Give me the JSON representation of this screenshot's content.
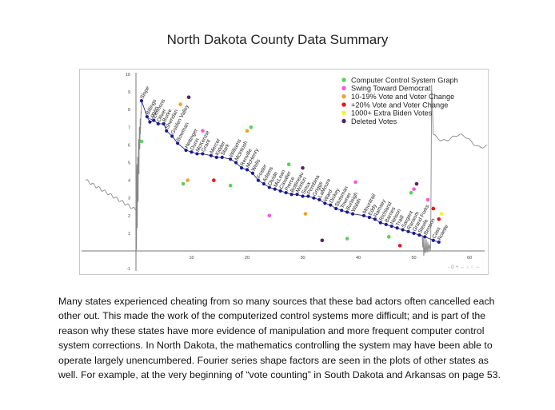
{
  "page": {
    "title": "North Dakota County Data Summary"
  },
  "chart_data": {
    "type": "scatter",
    "title": "",
    "xlabel": "",
    "ylabel": "",
    "xlim": [
      -9,
      64
    ],
    "ylim": [
      -1,
      10
    ],
    "x_ticks": [
      10,
      20,
      30,
      40,
      50,
      60
    ],
    "y_ticks": [
      -1,
      1,
      2,
      3,
      4,
      5,
      6,
      7,
      8,
      9,
      10
    ],
    "grid": false,
    "legend_position": "top-right",
    "legend": [
      {
        "label": "Computer Control System Graph",
        "color": "#5bd15b"
      },
      {
        "label": "Swing Toward Democrat",
        "color": "#ff55dd"
      },
      {
        "label": "10-19% Vote and Voter Change",
        "color": "#f0a030"
      },
      {
        "label": "+20% Vote and Voter Change",
        "color": "#e01818"
      },
      {
        "label": "1000+ Extra Biden Votes",
        "color": "#f5f520"
      },
      {
        "label": "Deleted Votes",
        "color": "#552266"
      }
    ],
    "counties": [
      {
        "name": "Slope",
        "x": 1,
        "y": 8.5
      },
      {
        "name": "Billings",
        "x": 2,
        "y": 7.6
      },
      {
        "name": "Logan",
        "x": 2.5,
        "y": 7.3
      },
      {
        "name": "Emmons",
        "x": 3.2,
        "y": 7.4
      },
      {
        "name": "Oliver",
        "x": 4,
        "y": 7.2
      },
      {
        "name": "Burke",
        "x": 5,
        "y": 7.2
      },
      {
        "name": "Sheridan",
        "x": 5.5,
        "y": 6.8
      },
      {
        "name": "Golden Valley",
        "x": 6.5,
        "y": 6.5
      },
      {
        "name": "Bowman",
        "x": 7.5,
        "y": 6.1
      },
      {
        "name": "Hettinger",
        "x": 9,
        "y": 5.7
      },
      {
        "name": "Dunn",
        "x": 10,
        "y": 5.6
      },
      {
        "name": "McKenzie",
        "x": 11,
        "y": 5.5
      },
      {
        "name": "Grant",
        "x": 12,
        "y": 5.5
      },
      {
        "name": "Mercer",
        "x": 13.5,
        "y": 5.4
      },
      {
        "name": "Kidder",
        "x": 14.5,
        "y": 5.3
      },
      {
        "name": "Stark",
        "x": 15.5,
        "y": 5.3
      },
      {
        "name": "Williams",
        "x": 17,
        "y": 5.2
      },
      {
        "name": "McIntosh",
        "x": 18,
        "y": 5.0
      },
      {
        "name": "Renville",
        "x": 19,
        "y": 4.7
      },
      {
        "name": "McHenry",
        "x": 20,
        "y": 4.6
      },
      {
        "name": "Wells",
        "x": 21,
        "y": 4.4
      },
      {
        "name": "Foster",
        "x": 22,
        "y": 4.0
      },
      {
        "name": "Adams",
        "x": 23,
        "y": 3.8
      },
      {
        "name": "Divide",
        "x": 24,
        "y": 3.6
      },
      {
        "name": "McLean",
        "x": 25,
        "y": 3.5
      },
      {
        "name": "Cavalier",
        "x": 26,
        "y": 3.4
      },
      {
        "name": "Pierce",
        "x": 27,
        "y": 3.3
      },
      {
        "name": "Bottineau",
        "x": 28,
        "y": 3.2
      },
      {
        "name": "Morton",
        "x": 29,
        "y": 3.2
      },
      {
        "name": "Sioux",
        "x": 30,
        "y": 3.1
      },
      {
        "name": "Pembina",
        "x": 31,
        "y": 3.1
      },
      {
        "name": "Griggs",
        "x": 32,
        "y": 3.0
      },
      {
        "name": "LaMoure",
        "x": 33,
        "y": 2.9
      },
      {
        "name": "Ward",
        "x": 34,
        "y": 2.7
      },
      {
        "name": "Dickey",
        "x": 35,
        "y": 2.6
      },
      {
        "name": "Stutsman",
        "x": 36,
        "y": 2.4
      },
      {
        "name": "Towner",
        "x": 37,
        "y": 2.3
      },
      {
        "name": "Burleigh",
        "x": 38,
        "y": 2.2
      },
      {
        "name": "Walsh",
        "x": 39,
        "y": 2.1
      },
      {
        "name": "Mountrail",
        "x": 41,
        "y": 2.0
      },
      {
        "name": "Eddy",
        "x": 42,
        "y": 1.9
      },
      {
        "name": "Ramsey",
        "x": 43,
        "y": 1.8
      },
      {
        "name": "Richland",
        "x": 44,
        "y": 1.6
      },
      {
        "name": "Barnes",
        "x": 45,
        "y": 1.5
      },
      {
        "name": "Nelson",
        "x": 46,
        "y": 1.4
      },
      {
        "name": "Traill",
        "x": 47,
        "y": 1.3
      },
      {
        "name": "Sargent",
        "x": 48,
        "y": 1.2
      },
      {
        "name": "Ransom",
        "x": 49,
        "y": 1.1
      },
      {
        "name": "Grand Forks",
        "x": 50,
        "y": 1.0
      },
      {
        "name": "Steele",
        "x": 51,
        "y": 0.9
      },
      {
        "name": "Benson",
        "x": 52,
        "y": 0.8
      },
      {
        "name": "Cass",
        "x": 53.5,
        "y": 0.6
      },
      {
        "name": "Rolette",
        "x": 54.5,
        "y": 0.5
      }
    ],
    "markers": [
      {
        "category": "Computer Control System Graph",
        "x": 1,
        "y": 6.2
      },
      {
        "category": "10-19% Vote and Voter Change",
        "x": 8,
        "y": 8.3
      },
      {
        "category": "Deleted Votes",
        "x": 9.5,
        "y": 8.7
      },
      {
        "category": "Computer Control System Graph",
        "x": 8.5,
        "y": 3.8
      },
      {
        "category": "10-19% Vote and Voter Change",
        "x": 9.3,
        "y": 4.0
      },
      {
        "category": "Swing Toward Democrat",
        "x": 12,
        "y": 6.8
      },
      {
        "category": "10-19% Vote and Voter Change",
        "x": 20,
        "y": 6.8
      },
      {
        "category": "Computer Control System Graph",
        "x": 20.7,
        "y": 7.0
      },
      {
        "category": "+20% Vote and Voter Change",
        "x": 14,
        "y": 4.0
      },
      {
        "category": "Computer Control System Graph",
        "x": 17,
        "y": 3.7
      },
      {
        "category": "Computer Control System Graph",
        "x": 27.5,
        "y": 4.9
      },
      {
        "category": "Deleted Votes",
        "x": 30,
        "y": 4.7
      },
      {
        "category": "Swing Toward Democrat",
        "x": 24,
        "y": 2.0
      },
      {
        "category": "10-19% Vote and Voter Change",
        "x": 30.5,
        "y": 2.1
      },
      {
        "category": "Swing Toward Democrat",
        "x": 39.5,
        "y": 3.9
      },
      {
        "category": "Deleted Votes",
        "x": 33.5,
        "y": 0.6
      },
      {
        "category": "Computer Control System Graph",
        "x": 38,
        "y": 0.7
      },
      {
        "category": "Computer Control System Graph",
        "x": 45.5,
        "y": 0.8
      },
      {
        "category": "+20% Vote and Voter Change",
        "x": 47.5,
        "y": 0.3
      },
      {
        "category": "Computer Control System Graph",
        "x": 49.5,
        "y": 3.3
      },
      {
        "category": "Swing Toward Democrat",
        "x": 50,
        "y": 3.5
      },
      {
        "category": "Deleted Votes",
        "x": 50.5,
        "y": 3.8
      },
      {
        "category": "Swing Toward Democrat",
        "x": 52.5,
        "y": 2.9
      },
      {
        "category": "+20% Vote and Voter Change",
        "x": 54.5,
        "y": 1.8
      },
      {
        "category": "1000+ Extra Biden Votes",
        "x": 55,
        "y": 2.1
      },
      {
        "category": "+20% Vote and Voter Change",
        "x": 53.5,
        "y": 2.4
      }
    ],
    "toolbar_glyphs": "- 0 + ← ↓ ↑ →"
  },
  "caption": {
    "text": "Many states experienced cheating from so many sources that these bad actors often cancelled each other out.  This made the work of the computerized control systems more difficult; and is part of the reason why these states have more evidence of manipulation and more frequent computer control system corrections.  In North Dakota, the mathematics controlling the system may have been able to operate largely unencumbered.  Fourier series shape factors are seen in the plots of other states as well.  For example, at the very beginning of “vote counting” in South Dakota and Arkansas on page 53."
  }
}
